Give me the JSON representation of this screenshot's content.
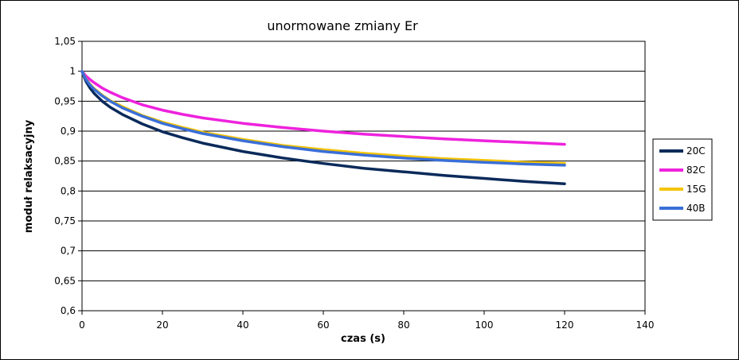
{
  "chart_data": {
    "type": "line",
    "title": "unormowane zmiany Er",
    "xlabel": "czas (s)",
    "ylabel": "moduł relaksacyjny",
    "xlim": [
      0,
      140
    ],
    "ylim": [
      0.6,
      1.05
    ],
    "x_ticks": [
      0,
      20,
      40,
      60,
      80,
      100,
      120,
      140
    ],
    "y_ticks": [
      0.6,
      0.65,
      0.7,
      0.75,
      0.8,
      0.85,
      0.9,
      0.95,
      1,
      1.05
    ],
    "x_tick_labels": [
      "0",
      "20",
      "40",
      "60",
      "80",
      "100",
      "120",
      "140"
    ],
    "y_tick_labels": [
      "0,6",
      "0,65",
      "0,7",
      "0,75",
      "0,8",
      "0,85",
      "0,9",
      "0,95",
      "1",
      "1,05"
    ],
    "grid": "horizontal",
    "legend_position": "right",
    "x": [
      0,
      1,
      2,
      3,
      5,
      7,
      10,
      15,
      20,
      25,
      30,
      40,
      50,
      60,
      70,
      80,
      90,
      100,
      110,
      120
    ],
    "series": [
      {
        "name": "20C",
        "color": "#0a2a5a",
        "values": [
          1.0,
          0.983,
          0.972,
          0.963,
          0.95,
          0.94,
          0.928,
          0.912,
          0.899,
          0.889,
          0.88,
          0.866,
          0.855,
          0.846,
          0.838,
          0.832,
          0.826,
          0.821,
          0.816,
          0.812
        ]
      },
      {
        "name": "82C",
        "color": "#ee22dd",
        "values": [
          1.0,
          0.992,
          0.986,
          0.981,
          0.972,
          0.965,
          0.956,
          0.944,
          0.935,
          0.928,
          0.922,
          0.913,
          0.906,
          0.9,
          0.895,
          0.891,
          0.887,
          0.884,
          0.881,
          0.878
        ]
      },
      {
        "name": "15G",
        "color": "#f5c400",
        "values": [
          1.0,
          0.987,
          0.978,
          0.971,
          0.96,
          0.951,
          0.941,
          0.926,
          0.915,
          0.906,
          0.898,
          0.886,
          0.876,
          0.869,
          0.863,
          0.858,
          0.854,
          0.851,
          0.848,
          0.846
        ]
      },
      {
        "name": "40B",
        "color": "#3a6fd8",
        "values": [
          1.0,
          0.986,
          0.977,
          0.97,
          0.959,
          0.95,
          0.939,
          0.925,
          0.913,
          0.904,
          0.896,
          0.884,
          0.874,
          0.866,
          0.86,
          0.855,
          0.851,
          0.848,
          0.845,
          0.843
        ]
      }
    ]
  }
}
